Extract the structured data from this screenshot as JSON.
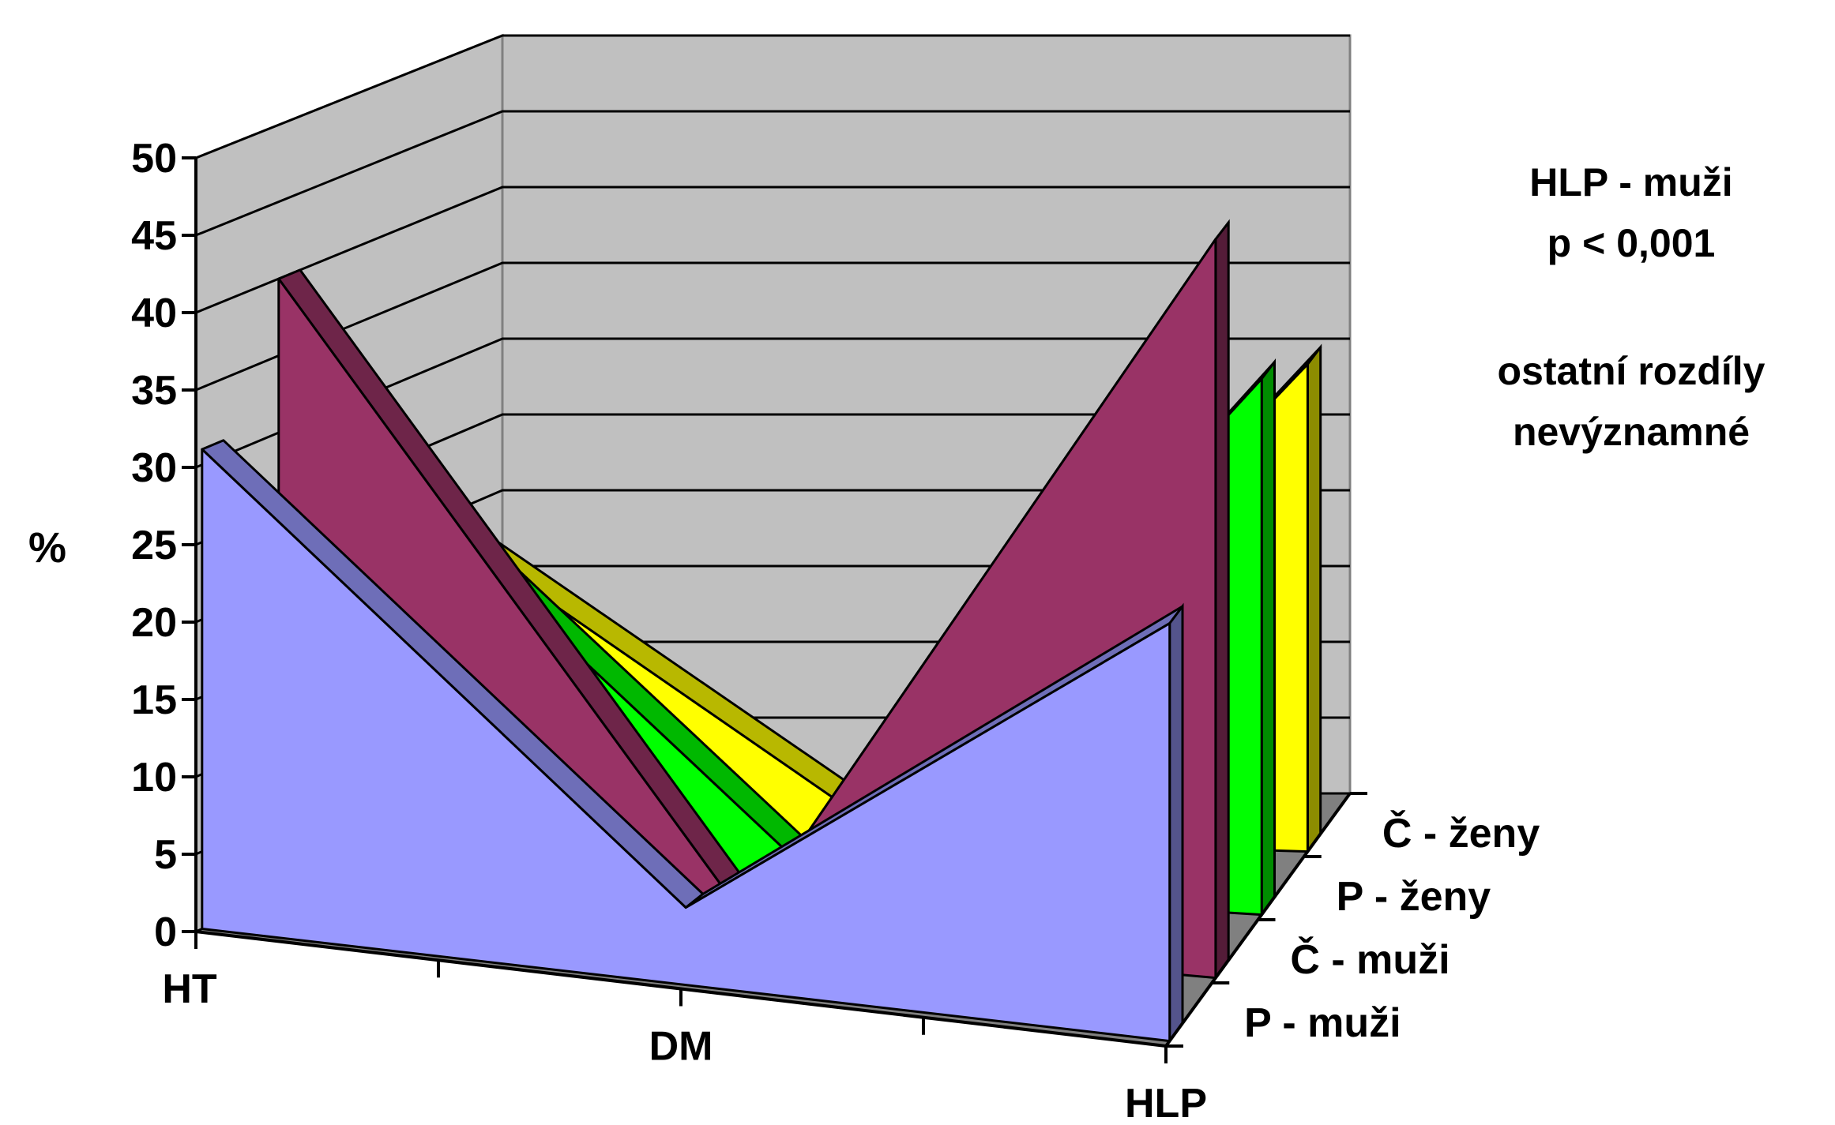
{
  "chart_data": {
    "type": "area",
    "title": "",
    "xlabel": "",
    "ylabel": "%",
    "ylim": [
      0,
      50
    ],
    "y_ticks": [
      "0",
      "5",
      "10",
      "15",
      "20",
      "25",
      "30",
      "35",
      "40",
      "45",
      "50"
    ],
    "grid": true,
    "projection": "3d",
    "categories": [
      "HT",
      "DM",
      "HLP"
    ],
    "depth_categories": [
      "P - muži",
      "Č - muži",
      "P - ženy",
      "Č - ženy"
    ],
    "series": [
      {
        "name": "P - muži",
        "values": [
          31,
          5,
          27
        ],
        "color": "#9999ff"
      },
      {
        "name": "Č - muži",
        "values": [
          40,
          1,
          48
        ],
        "color": "#993366"
      },
      {
        "name": "P - ženy",
        "values": [
          27,
          1,
          35
        ],
        "color": "#00ff00"
      },
      {
        "name": "Č - ženy",
        "values": [
          20,
          1,
          32
        ],
        "color": "#ffff00"
      }
    ]
  },
  "annotations": {
    "significance_lines": [
      "HLP  - muži",
      "p <  0,001"
    ],
    "note_lines": [
      "ostatní rozdíly",
      "nevýznamné"
    ]
  }
}
